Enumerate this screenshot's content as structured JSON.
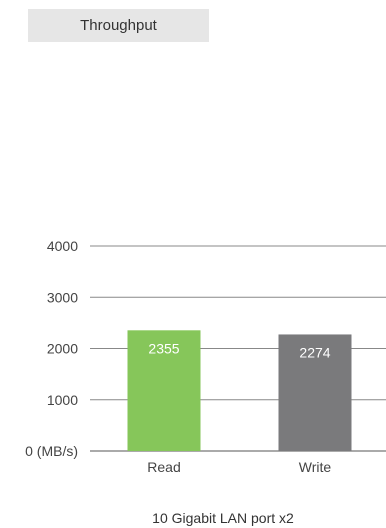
{
  "tab": {
    "label": "Throughput"
  },
  "chart_data": {
    "type": "bar",
    "categories": [
      "Read",
      "Write"
    ],
    "values": [
      2355,
      2274
    ],
    "value_labels": [
      "2355",
      "2274"
    ],
    "y_ticks": [
      {
        "value": 0,
        "label": "0 (MB/s)"
      },
      {
        "value": 1000,
        "label": "1000"
      },
      {
        "value": 2000,
        "label": "2000"
      },
      {
        "value": 3000,
        "label": "3000"
      },
      {
        "value": 4000,
        "label": "4000"
      }
    ],
    "ylim": [
      0,
      4000
    ],
    "grid": true,
    "colors": [
      "#86c65a",
      "#7a7a7c"
    ],
    "caption": "10 Gigabit LAN port x2"
  }
}
